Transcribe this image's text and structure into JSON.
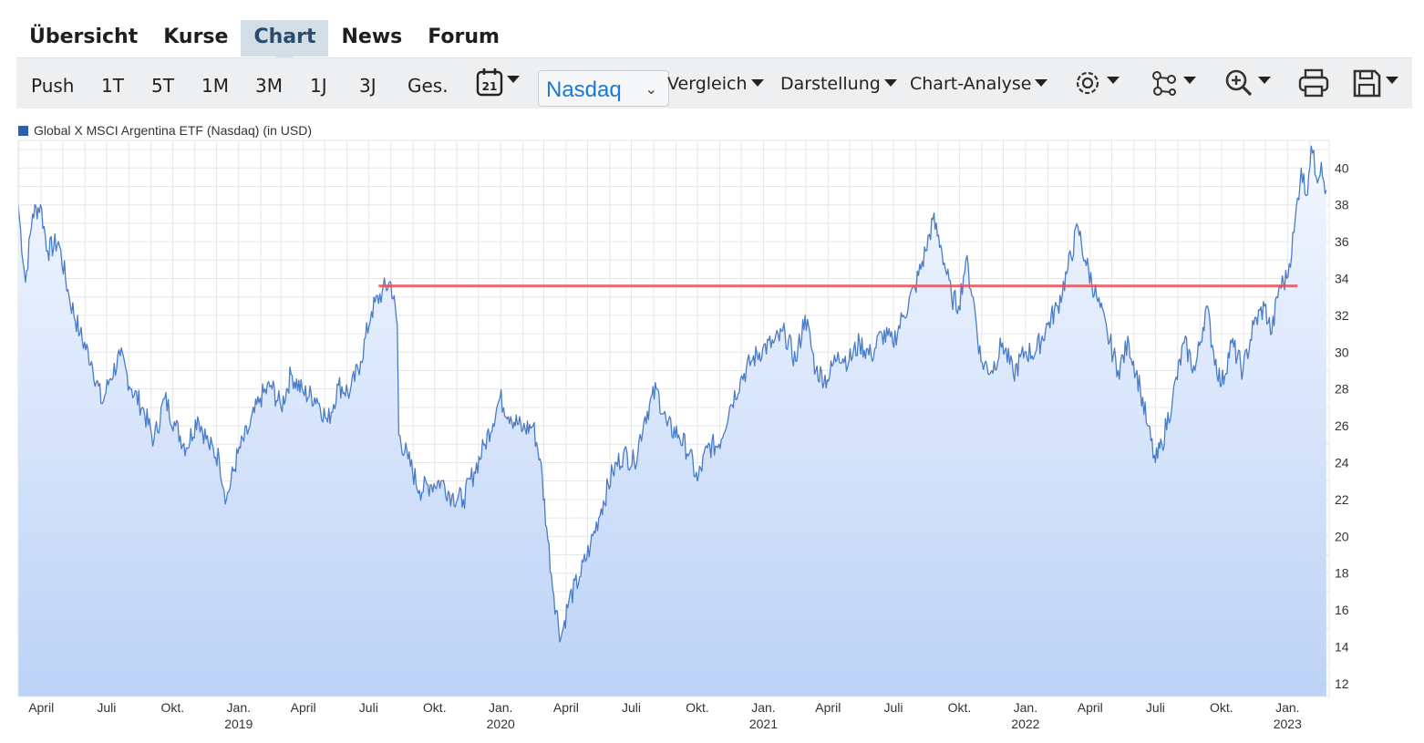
{
  "tabs": [
    "Übersicht",
    "Kurse",
    "Chart",
    "News",
    "Forum"
  ],
  "active_tab": "Chart",
  "toolbar": {
    "periods": [
      "Push",
      "1T",
      "5T",
      "1M",
      "3M",
      "1J",
      "3J",
      "Ges."
    ],
    "calendar_day": "21",
    "exchange_select": "Nasdaq",
    "vergleich": "Vergleich",
    "darstellung": "Darstellung",
    "analyse": "Chart-Analyse",
    "icons": [
      "settings-icon",
      "indicators-icon",
      "zoom-icon",
      "print-icon",
      "save-icon"
    ]
  },
  "colors": {
    "line": "#4a7cc7",
    "fill_top": "#f3f7ff",
    "fill_bottom": "#bcd2f6",
    "hline": "#e8505b",
    "accent": "#2a4b6e"
  },
  "chart_data": {
    "type": "area",
    "series": [
      {
        "name": "Global X MSCI Argentina ETF (Nasdaq) (in USD)",
        "values": [
          [
            "2018-02-28",
            38.0
          ],
          [
            "2018-03-10",
            33.8
          ],
          [
            "2018-03-20",
            37.5
          ],
          [
            "2018-03-31",
            38.0
          ],
          [
            "2018-04-10",
            35.5
          ],
          [
            "2018-04-25",
            36.0
          ],
          [
            "2018-05-10",
            33.0
          ],
          [
            "2018-05-25",
            31.0
          ],
          [
            "2018-06-10",
            29.5
          ],
          [
            "2018-06-25",
            27.2
          ],
          [
            "2018-07-05",
            28.5
          ],
          [
            "2018-07-20",
            29.8
          ],
          [
            "2018-08-05",
            28.0
          ],
          [
            "2018-08-20",
            27.0
          ],
          [
            "2018-09-05",
            25.2
          ],
          [
            "2018-09-20",
            27.5
          ],
          [
            "2018-10-05",
            26.0
          ],
          [
            "2018-10-20",
            24.8
          ],
          [
            "2018-11-05",
            26.5
          ],
          [
            "2018-11-20",
            25.0
          ],
          [
            "2018-12-05",
            24.2
          ],
          [
            "2018-12-15",
            22.0
          ],
          [
            "2018-12-31",
            24.5
          ],
          [
            "2019-01-15",
            25.8
          ],
          [
            "2019-01-31",
            27.5
          ],
          [
            "2019-02-15",
            28.2
          ],
          [
            "2019-03-01",
            27.0
          ],
          [
            "2019-03-15",
            28.8
          ],
          [
            "2019-04-01",
            27.8
          ],
          [
            "2019-04-20",
            27.5
          ],
          [
            "2019-05-05",
            26.2
          ],
          [
            "2019-05-20",
            28.2
          ],
          [
            "2019-06-05",
            27.8
          ],
          [
            "2019-06-20",
            29.5
          ],
          [
            "2019-07-05",
            32.2
          ],
          [
            "2019-07-20",
            33.3
          ],
          [
            "2019-08-01",
            33.8
          ],
          [
            "2019-08-10",
            31.5
          ],
          [
            "2019-08-12",
            25.5
          ],
          [
            "2019-08-25",
            24.2
          ],
          [
            "2019-09-10",
            22.5
          ],
          [
            "2019-09-25",
            22.8
          ],
          [
            "2019-10-10",
            23.0
          ],
          [
            "2019-10-25",
            22.2
          ],
          [
            "2019-11-10",
            22.0
          ],
          [
            "2019-11-25",
            23.5
          ],
          [
            "2019-12-10",
            25.0
          ],
          [
            "2019-12-31",
            27.5
          ],
          [
            "2020-01-15",
            26.5
          ],
          [
            "2020-02-01",
            25.8
          ],
          [
            "2020-02-15",
            26.0
          ],
          [
            "2020-02-25",
            24.2
          ],
          [
            "2020-03-05",
            20.5
          ],
          [
            "2020-03-15",
            16.8
          ],
          [
            "2020-03-25",
            14.5
          ],
          [
            "2020-04-05",
            16.5
          ],
          [
            "2020-04-20",
            17.8
          ],
          [
            "2020-05-05",
            19.5
          ],
          [
            "2020-05-20",
            21.5
          ],
          [
            "2020-06-05",
            23.5
          ],
          [
            "2020-06-20",
            24.5
          ],
          [
            "2020-07-05",
            24.0
          ],
          [
            "2020-07-20",
            26.5
          ],
          [
            "2020-08-05",
            28.0
          ],
          [
            "2020-08-20",
            26.0
          ],
          [
            "2020-09-05",
            25.5
          ],
          [
            "2020-09-20",
            24.5
          ],
          [
            "2020-10-01",
            23.0
          ],
          [
            "2020-10-15",
            24.8
          ],
          [
            "2020-10-31",
            25.0
          ],
          [
            "2020-11-15",
            27.0
          ],
          [
            "2020-11-30",
            28.5
          ],
          [
            "2020-12-15",
            29.5
          ],
          [
            "2020-12-31",
            30.2
          ],
          [
            "2021-01-15",
            30.5
          ],
          [
            "2021-01-31",
            31.0
          ],
          [
            "2021-02-15",
            29.5
          ],
          [
            "2021-02-28",
            32.0
          ],
          [
            "2021-03-15",
            29.0
          ],
          [
            "2021-03-31",
            28.5
          ],
          [
            "2021-04-15",
            30.0
          ],
          [
            "2021-04-30",
            29.5
          ],
          [
            "2021-05-15",
            30.5
          ],
          [
            "2021-05-31",
            29.8
          ],
          [
            "2021-06-15",
            31.0
          ],
          [
            "2021-06-30",
            30.5
          ],
          [
            "2021-07-15",
            32.0
          ],
          [
            "2021-07-31",
            33.5
          ],
          [
            "2021-08-15",
            35.5
          ],
          [
            "2021-08-25",
            37.2
          ],
          [
            "2021-09-05",
            35.8
          ],
          [
            "2021-09-20",
            33.0
          ],
          [
            "2021-09-30",
            32.5
          ],
          [
            "2021-10-10",
            35.0
          ],
          [
            "2021-10-20",
            33.0
          ],
          [
            "2021-10-31",
            29.5
          ],
          [
            "2021-11-15",
            29.0
          ],
          [
            "2021-11-30",
            30.5
          ],
          [
            "2021-12-15",
            28.8
          ],
          [
            "2021-12-31",
            30.0
          ],
          [
            "2022-01-15",
            30.0
          ],
          [
            "2022-02-01",
            31.5
          ],
          [
            "2022-02-15",
            32.5
          ],
          [
            "2022-03-01",
            34.5
          ],
          [
            "2022-03-15",
            36.8
          ],
          [
            "2022-03-25",
            35.0
          ],
          [
            "2022-04-10",
            33.0
          ],
          [
            "2022-04-25",
            31.0
          ],
          [
            "2022-05-10",
            29.0
          ],
          [
            "2022-05-25",
            30.5
          ],
          [
            "2022-06-10",
            28.0
          ],
          [
            "2022-06-20",
            26.0
          ],
          [
            "2022-07-01",
            24.0
          ],
          [
            "2022-07-10",
            25.0
          ],
          [
            "2022-07-25",
            27.5
          ],
          [
            "2022-08-10",
            30.5
          ],
          [
            "2022-08-25",
            29.0
          ],
          [
            "2022-09-10",
            32.5
          ],
          [
            "2022-09-20",
            30.0
          ],
          [
            "2022-10-01",
            28.2
          ],
          [
            "2022-10-15",
            30.5
          ],
          [
            "2022-10-31",
            29.0
          ],
          [
            "2022-11-15",
            31.5
          ],
          [
            "2022-11-30",
            32.5
          ],
          [
            "2022-12-10",
            31.0
          ],
          [
            "2022-12-20",
            33.5
          ],
          [
            "2022-12-31",
            34.0
          ],
          [
            "2023-01-10",
            36.5
          ],
          [
            "2023-01-20",
            40.0
          ],
          [
            "2023-01-27",
            38.5
          ],
          [
            "2023-02-03",
            41.2
          ],
          [
            "2023-02-10",
            39.5
          ],
          [
            "2023-02-17",
            40.3
          ],
          [
            "2023-02-24",
            38.8
          ]
        ]
      }
    ],
    "hline": {
      "y": 33.6,
      "x_start": "2019-07-15",
      "x_end": "2023-01-15"
    },
    "ylim": [
      11.3,
      41.5
    ],
    "xlim": [
      "2018-02-28",
      "2023-02-28"
    ],
    "y_ticks": [
      12,
      14,
      16,
      18,
      20,
      22,
      24,
      26,
      28,
      30,
      32,
      34,
      36,
      38,
      40
    ],
    "x_ticks": [
      {
        "date": "2018-04-01",
        "label": "April",
        "year": ""
      },
      {
        "date": "2018-07-01",
        "label": "Juli",
        "year": ""
      },
      {
        "date": "2018-10-01",
        "label": "Okt.",
        "year": ""
      },
      {
        "date": "2019-01-01",
        "label": "Jan.",
        "year": "2019"
      },
      {
        "date": "2019-04-01",
        "label": "April",
        "year": ""
      },
      {
        "date": "2019-07-01",
        "label": "Juli",
        "year": ""
      },
      {
        "date": "2019-10-01",
        "label": "Okt.",
        "year": ""
      },
      {
        "date": "2020-01-01",
        "label": "Jan.",
        "year": "2020"
      },
      {
        "date": "2020-04-01",
        "label": "April",
        "year": ""
      },
      {
        "date": "2020-07-01",
        "label": "Juli",
        "year": ""
      },
      {
        "date": "2020-10-01",
        "label": "Okt.",
        "year": ""
      },
      {
        "date": "2021-01-01",
        "label": "Jan.",
        "year": "2021"
      },
      {
        "date": "2021-04-01",
        "label": "April",
        "year": ""
      },
      {
        "date": "2021-07-01",
        "label": "Juli",
        "year": ""
      },
      {
        "date": "2021-10-01",
        "label": "Okt.",
        "year": ""
      },
      {
        "date": "2022-01-01",
        "label": "Jan.",
        "year": "2022"
      },
      {
        "date": "2022-04-01",
        "label": "April",
        "year": ""
      },
      {
        "date": "2022-07-01",
        "label": "Juli",
        "year": ""
      },
      {
        "date": "2022-10-01",
        "label": "Okt.",
        "year": ""
      },
      {
        "date": "2023-01-01",
        "label": "Jan.",
        "year": "2023"
      }
    ],
    "grid": true,
    "legend": "top-left"
  }
}
